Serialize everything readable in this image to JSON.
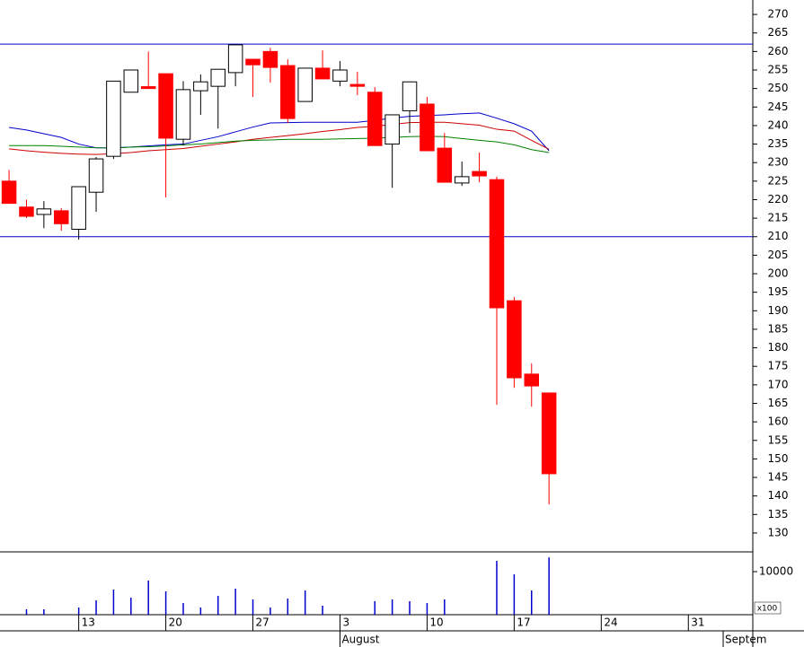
{
  "chart_data": {
    "type": "candlestick",
    "x": [
      0,
      1,
      2,
      3,
      4,
      5,
      6,
      7,
      8,
      9,
      10,
      11,
      12,
      13,
      14,
      15,
      16,
      17,
      18,
      19,
      20,
      21,
      22,
      23,
      24,
      25,
      26,
      27,
      28,
      29,
      30,
      31
    ],
    "open": [
      225,
      218,
      216,
      217,
      212,
      222,
      231.7,
      249,
      250.5,
      254,
      236.3,
      249.4,
      250.6,
      254.3,
      257.9,
      260,
      256.2,
      246.5,
      255.5,
      252,
      251.1,
      249,
      235,
      244,
      245.8,
      233.9,
      224.5,
      227.6,
      225.4,
      192.7,
      172.9,
      167.8
    ],
    "close": [
      219,
      215.5,
      217.5,
      213.5,
      223.5,
      231,
      252,
      255,
      250,
      236.6,
      249.7,
      251.8,
      255.2,
      261.8,
      256.4,
      255.7,
      241.9,
      255.5,
      252.6,
      255,
      250.6,
      234.6,
      242.9,
      251.8,
      233.2,
      224.7,
      226.2,
      226.4,
      190.8,
      171.9,
      169.7,
      146
    ],
    "high": [
      228,
      220,
      219.6,
      217.7,
      223.5,
      231.5,
      252,
      255,
      260,
      254,
      252,
      253.8,
      255.2,
      261.8,
      257.9,
      261,
      257.9,
      255.5,
      260.3,
      257.4,
      254.5,
      250.4,
      242.9,
      251.8,
      247.7,
      238,
      230.3,
      232.7,
      226.2,
      193.7,
      175.8,
      167.8
    ],
    "low": [
      219,
      215,
      212.3,
      211.6,
      209.2,
      216.7,
      231,
      249,
      250,
      220.6,
      234.6,
      242.9,
      239.2,
      250.6,
      247.7,
      251.6,
      240.7,
      246.5,
      252.6,
      250.6,
      248.2,
      234.6,
      223.2,
      238,
      233.2,
      224.7,
      223.7,
      224.7,
      164.6,
      169.2,
      164.1,
      137.7
    ],
    "volume": [
      null,
      1250,
      1250,
      null,
      1670,
      3330,
      5830,
      3960,
      7920,
      5420,
      2710,
      1670,
      4380,
      6040,
      3540,
      1670,
      3750,
      5630,
      2080,
      null,
      null,
      3130,
      3540,
      3130,
      2710,
      3540,
      null,
      null,
      12500,
      9380,
      5630,
      13300
    ],
    "up_color": "#ffffff",
    "down_color": "#ff0000",
    "series": [
      {
        "color": "#0000cc",
        "values": [
          239.5,
          238.8,
          237.8,
          236.8,
          235.0,
          234.0,
          234.0,
          234.2,
          234.5,
          234.8,
          235.0,
          236.0,
          237.0,
          238.3,
          239.6,
          240.7,
          240.8,
          240.9,
          240.9,
          240.9,
          240.9,
          241.4,
          242.0,
          242.5,
          242.7,
          242.9,
          243.2,
          243.4,
          242.0,
          240.5,
          238.5,
          233.2
        ]
      },
      {
        "color": "#cc0000",
        "values": [
          233.7,
          233.2,
          232.8,
          232.5,
          232.3,
          232.2,
          232.4,
          232.7,
          233.2,
          233.5,
          233.8,
          234.4,
          235.0,
          235.6,
          236.3,
          236.8,
          237.3,
          237.8,
          238.4,
          238.9,
          239.5,
          239.8,
          240.3,
          240.8,
          240.9,
          240.9,
          240.5,
          240.1,
          239.0,
          238.5,
          236.0,
          233.6
        ]
      },
      {
        "color": "#008000",
        "values": [
          234.6,
          234.6,
          234.6,
          234.4,
          234.2,
          234.0,
          233.9,
          234.2,
          234.3,
          234.5,
          234.8,
          235.0,
          235.4,
          235.8,
          236.0,
          236.1,
          236.3,
          236.3,
          236.3,
          236.4,
          236.5,
          236.6,
          236.8,
          237.0,
          237.1,
          237.0,
          236.5,
          236.0,
          235.6,
          234.8,
          233.5,
          232.7
        ]
      }
    ],
    "hlines": [
      262,
      210
    ],
    "hline_color": "#0000cc",
    "xlim": [
      -0.52,
      42.7
    ],
    "xticks": [
      {
        "value": 4,
        "label": "13"
      },
      {
        "value": 9,
        "label": "20"
      },
      {
        "value": 14,
        "label": "27"
      },
      {
        "value": 19,
        "label": "3"
      },
      {
        "value": 24,
        "label": "10"
      },
      {
        "value": 29,
        "label": "17"
      },
      {
        "value": 34,
        "label": "24"
      },
      {
        "value": 39,
        "label": "31"
      }
    ],
    "month_ticks": [
      {
        "value": 19,
        "label": "August"
      },
      {
        "value": 41,
        "label": "Septem"
      }
    ],
    "ylim": [
      124.9,
      273.9
    ],
    "yticks": [
      130,
      135,
      140,
      145,
      150,
      155,
      160,
      165,
      170,
      175,
      180,
      185,
      190,
      195,
      200,
      205,
      210,
      215,
      220,
      225,
      230,
      235,
      240,
      245,
      250,
      255,
      260,
      265,
      270
    ],
    "volume_ylim": [
      0,
      14580
    ],
    "volume_yticks": [
      10000
    ],
    "volume_unit": "x100"
  }
}
